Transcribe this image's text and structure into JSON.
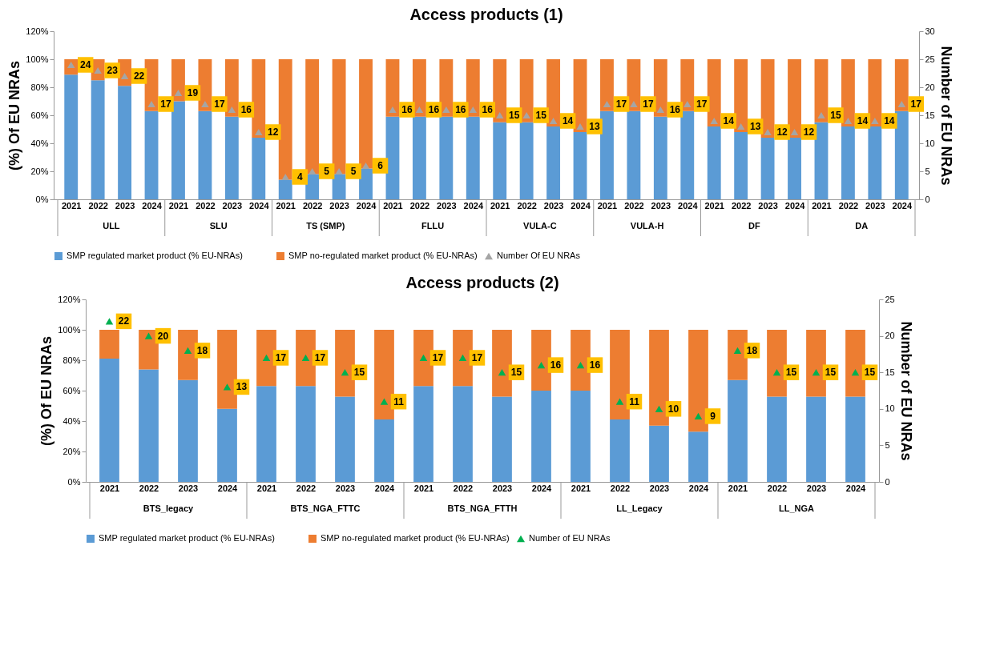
{
  "chart_data": [
    {
      "type": "bar",
      "title": "Access products (1)",
      "ylabel": "(%) Of EU NRAs",
      "y2label": "Number of EU NRAs",
      "stacked": true,
      "legend": "bottom",
      "categories": [
        "2021",
        "2022",
        "2023",
        "2024",
        "2021",
        "2022",
        "2023",
        "2024",
        "2021",
        "2022",
        "2023",
        "2024",
        "2021",
        "2022",
        "2023",
        "2024",
        "2021",
        "2022",
        "2023",
        "2024",
        "2021",
        "2022",
        "2023",
        "2024",
        "2021",
        "2022",
        "2023",
        "2024",
        "2021",
        "2022",
        "2023",
        "2024"
      ],
      "annotations": [
        "ULL",
        "SLU",
        "TS (SMP)",
        "FLLU",
        "VULA-C",
        "VULA-H",
        "DF",
        "DA"
      ],
      "ylim": [
        0,
        120
      ],
      "yticks": [
        {
          "value": 0,
          "label": "0%"
        },
        {
          "value": 20,
          "label": "20%"
        },
        {
          "value": 40,
          "label": "40%"
        },
        {
          "value": 60,
          "label": "60%"
        },
        {
          "value": 80,
          "label": "80%"
        },
        {
          "value": 100,
          "label": "100%"
        },
        {
          "value": 120,
          "label": "120%"
        }
      ],
      "y2lim": [
        0,
        30
      ],
      "y2ticks": [
        0,
        5,
        10,
        15,
        20,
        25,
        30
      ],
      "series": [
        {
          "name": "SMP regulated market product (% EU-NRAs)",
          "color": "#5b9bd5",
          "values": [
            89,
            85,
            81,
            63,
            70,
            63,
            59,
            44,
            14,
            18,
            18,
            22,
            59,
            59,
            59,
            59,
            55,
            55,
            52,
            48,
            63,
            63,
            59,
            63,
            52,
            48,
            44,
            44,
            55,
            52,
            52,
            63
          ]
        },
        {
          "name": "SMP no-regulated market product (% EU-NRAs)",
          "color": "#ed7d31",
          "values": [
            11,
            15,
            19,
            37,
            30,
            37,
            41,
            56,
            86,
            82,
            82,
            78,
            41,
            41,
            41,
            41,
            45,
            45,
            48,
            52,
            37,
            37,
            41,
            37,
            48,
            52,
            56,
            56,
            45,
            48,
            48,
            37
          ]
        },
        {
          "name": "Number Of EU NRAs",
          "type": "scatter",
          "axis": "y2",
          "color": "#a5a5a5",
          "marker": "triangle",
          "values": [
            24,
            23,
            22,
            17,
            19,
            17,
            16,
            12,
            4,
            5,
            5,
            6,
            16,
            16,
            16,
            16,
            15,
            15,
            14,
            13,
            17,
            17,
            16,
            17,
            14,
            13,
            12,
            12,
            15,
            14,
            14,
            17
          ],
          "value_labels": [
            "24",
            "23",
            "22",
            "17",
            "19",
            "17",
            "16",
            "12",
            "4",
            "5",
            "5",
            "6",
            "16",
            "16",
            "16",
            "16",
            "15",
            "15",
            "14",
            "13",
            "17",
            "17",
            "16",
            "17",
            "14",
            "13",
            "12",
            "12",
            "15",
            "14",
            "14",
            "17"
          ]
        }
      ]
    },
    {
      "type": "bar",
      "title": "Access products (2)",
      "ylabel": "(%) Of EU NRAs",
      "y2label": "Number of EU NRAs",
      "stacked": true,
      "legend": "bottom",
      "categories": [
        "2021",
        "2022",
        "2023",
        "2024",
        "2021",
        "2022",
        "2023",
        "2024",
        "2021",
        "2022",
        "2023",
        "2024",
        "2021",
        "2022",
        "2023",
        "2024",
        "2021",
        "2022",
        "2023",
        "2024"
      ],
      "annotations": [
        "BTS_legacy",
        "BTS_NGA_FTTC",
        "BTS_NGA_FTTH",
        "LL_Legacy",
        "LL_NGA"
      ],
      "ylim": [
        0,
        120
      ],
      "yticks": [
        {
          "value": 0,
          "label": "0%"
        },
        {
          "value": 20,
          "label": "20%"
        },
        {
          "value": 40,
          "label": "40%"
        },
        {
          "value": 60,
          "label": "60%"
        },
        {
          "value": 80,
          "label": "80%"
        },
        {
          "value": 100,
          "label": "100%"
        },
        {
          "value": 120,
          "label": "120%"
        }
      ],
      "y2lim": [
        0,
        25
      ],
      "y2ticks": [
        0,
        5,
        10,
        15,
        20,
        25
      ],
      "series": [
        {
          "name": "SMP regulated market product (% EU-NRAs)",
          "color": "#5b9bd5",
          "values": [
            81,
            74,
            67,
            48,
            63,
            63,
            56,
            41,
            63,
            63,
            56,
            60,
            60,
            41,
            37,
            33,
            67,
            56,
            56,
            56
          ]
        },
        {
          "name": "SMP no-regulated market product (% EU-NRAs)",
          "color": "#ed7d31",
          "values": [
            19,
            26,
            33,
            52,
            37,
            37,
            44,
            59,
            37,
            37,
            44,
            40,
            40,
            59,
            63,
            67,
            33,
            44,
            44,
            44
          ]
        },
        {
          "name": "Number of EU NRAs",
          "type": "scatter",
          "axis": "y2",
          "color": "#00b050",
          "marker": "triangle",
          "values": [
            22,
            20,
            18,
            13,
            17,
            17,
            15,
            11,
            17,
            17,
            15,
            16,
            16,
            11,
            10,
            9,
            18,
            15,
            15,
            15
          ],
          "value_labels": [
            "22",
            "20",
            "18",
            "13",
            "17",
            "17",
            "15",
            "11",
            "17",
            "17",
            "15",
            "16",
            "16",
            "11",
            "10",
            "9",
            "18",
            "15",
            "15",
            "15"
          ]
        }
      ]
    }
  ]
}
